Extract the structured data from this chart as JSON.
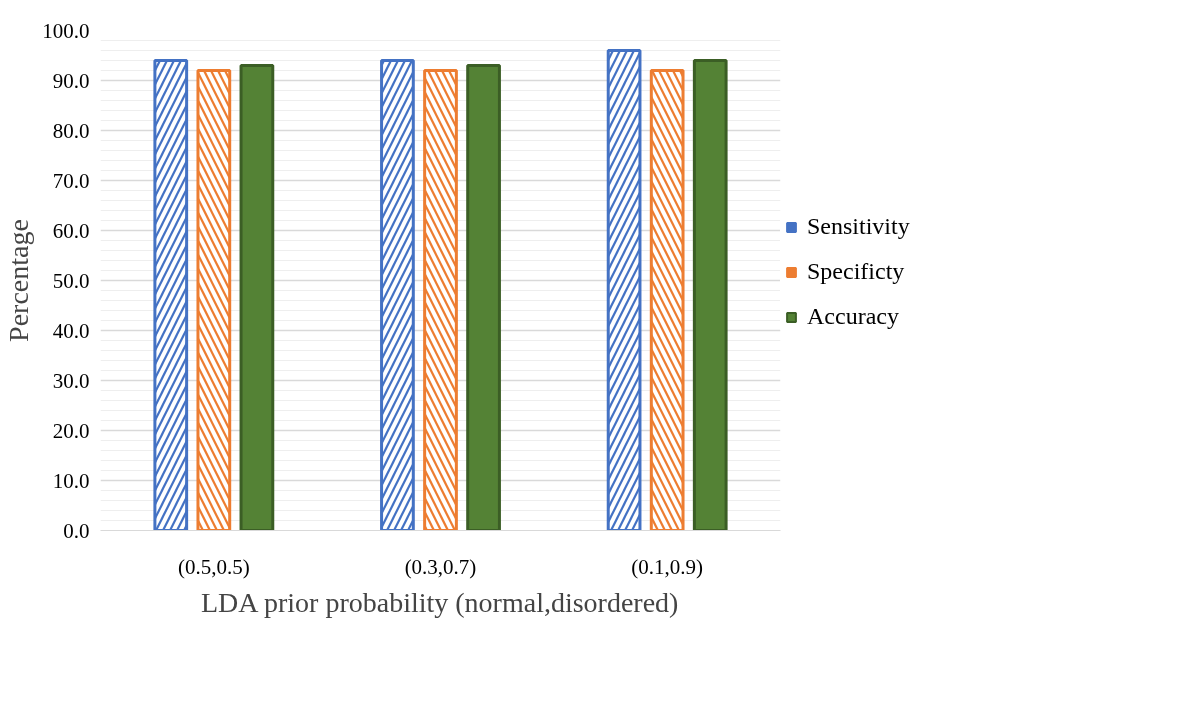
{
  "chart_data": {
    "type": "bar",
    "xlabel": "LDA prior probability (normal,disordered)",
    "ylabel": "Percentage",
    "categories": [
      "(0.5,0.5)",
      "(0.3,0.7)",
      "(0.1,0.9)"
    ],
    "series": [
      {
        "name": "Sensitivity",
        "color": "#4472c4",
        "values": [
          94,
          94,
          96
        ]
      },
      {
        "name": "Specificty",
        "color": "#ed7d31",
        "values": [
          92,
          92,
          92
        ]
      },
      {
        "name": "Accuracy",
        "color": "#548235",
        "values": [
          93,
          93,
          94
        ]
      }
    ],
    "ylim": [
      0,
      100
    ],
    "yticks": [
      {
        "value": 0,
        "label": "0.0"
      },
      {
        "value": 10,
        "label": "10.0"
      },
      {
        "value": 20,
        "label": "20.0"
      },
      {
        "value": 30,
        "label": "30.0"
      },
      {
        "value": 40,
        "label": "40.0"
      },
      {
        "value": 50,
        "label": "50.0"
      },
      {
        "value": 60,
        "label": "60.0"
      },
      {
        "value": 70,
        "label": "70.0"
      },
      {
        "value": 80,
        "label": "80.0"
      },
      {
        "value": 90,
        "label": "90.0"
      },
      {
        "value": 100,
        "label": "100.0"
      }
    ],
    "grid": "y",
    "legend": "right"
  }
}
